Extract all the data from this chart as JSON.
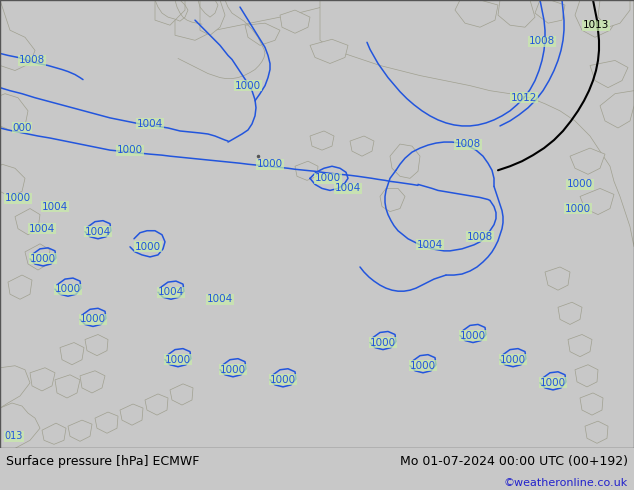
{
  "title_left": "Surface pressure [hPa] ECMWF",
  "title_right": "Mo 01-07-2024 00:00 UTC (00+192)",
  "credit": "©weatheronline.co.uk",
  "land_color": "#c8edaa",
  "sea_color": "#c8c8c8",
  "border_color": "#a0a090",
  "contour_blue": "#2255dd",
  "contour_black": "#000000",
  "bottom_bg": "#c8c8c8",
  "bottom_text": "#000000",
  "credit_color": "#2222cc",
  "fig_width": 6.34,
  "fig_height": 4.9,
  "dpi": 100,
  "title_fontsize": 9.0,
  "credit_fontsize": 8.0,
  "label_fontsize": 7.5
}
